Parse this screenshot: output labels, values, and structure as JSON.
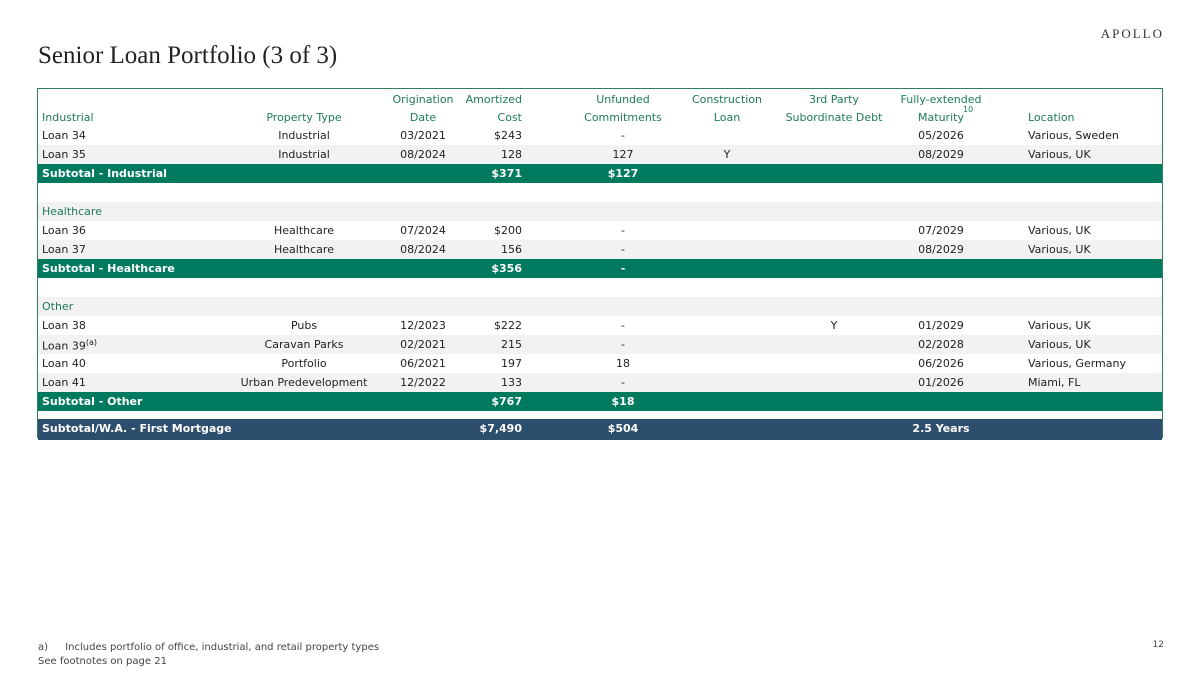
{
  "header": {
    "logo": "APOLLO",
    "title": "Senior Loan Portfolio (3 of 3)"
  },
  "table": {
    "columns": [
      {
        "bottom": "Industrial"
      },
      {
        "bottom": "Property Type"
      },
      {
        "top": "Origination",
        "bottom": "Date"
      },
      {
        "top": "Amortized",
        "bottom": "Cost"
      },
      {
        "top": "Unfunded",
        "bottom": "Commitments"
      },
      {
        "top": "Construction",
        "bottom": "Loan"
      },
      {
        "top": "3rd Party",
        "bottom": "Subordinate Debt"
      },
      {
        "top": "Fully-extended",
        "bottom": "Maturity",
        "sup": "10"
      },
      {
        "bottom": "Location"
      }
    ],
    "sections": [
      {
        "rows": [
          [
            "Loan 34",
            "Industrial",
            "03/2021",
            "$243",
            "-",
            null,
            null,
            "05/2026",
            "Various, Sweden"
          ],
          [
            "Loan 35",
            "Industrial",
            "08/2024",
            "128",
            "127",
            "Y",
            null,
            "08/2029",
            "Various, UK"
          ]
        ],
        "subtotal": [
          "Subtotal - Industrial",
          null,
          null,
          "$371",
          "$127",
          null,
          null,
          null,
          null
        ]
      },
      {
        "label": "Healthcare",
        "rows": [
          [
            "Loan 36",
            "Healthcare",
            "07/2024",
            "$200",
            "-",
            null,
            null,
            "07/2029",
            "Various, UK"
          ],
          [
            "Loan 37",
            "Healthcare",
            "08/2024",
            "156",
            "-",
            null,
            null,
            "08/2029",
            "Various, UK"
          ]
        ],
        "subtotal": [
          "Subtotal - Healthcare",
          null,
          null,
          "$356",
          "-",
          null,
          null,
          null,
          null
        ]
      },
      {
        "label": "Other",
        "rows": [
          [
            "Loan 38",
            "Pubs",
            "12/2023",
            "$222",
            "-",
            null,
            "Y",
            "01/2029",
            "Various, UK"
          ],
          [
            {
              "text": "Loan 39",
              "sup": "(a)"
            },
            "Caravan Parks",
            "02/2021",
            "215",
            "-",
            null,
            null,
            "02/2028",
            "Various, UK"
          ],
          [
            "Loan 40",
            "Portfolio",
            "06/2021",
            "197",
            "18",
            null,
            null,
            "06/2026",
            "Various, Germany"
          ],
          [
            "Loan 41",
            "Urban Predevelopment",
            "12/2022",
            "133",
            "-",
            null,
            null,
            "01/2026",
            "Miami, FL"
          ]
        ],
        "subtotal": [
          "Subtotal - Other",
          null,
          null,
          "$767",
          "$18",
          null,
          null,
          null,
          null
        ]
      }
    ],
    "total": [
      "Subtotal/W.A. - First Mortgage",
      null,
      null,
      "$7,490",
      "$504",
      null,
      null,
      "2.5 Years",
      null
    ]
  },
  "footnotes": [
    {
      "marker": "a)",
      "text": "Includes portfolio of office, industrial, and retail property types"
    }
  ],
  "see_also": "See footnotes on page 21",
  "page_number": "12"
}
